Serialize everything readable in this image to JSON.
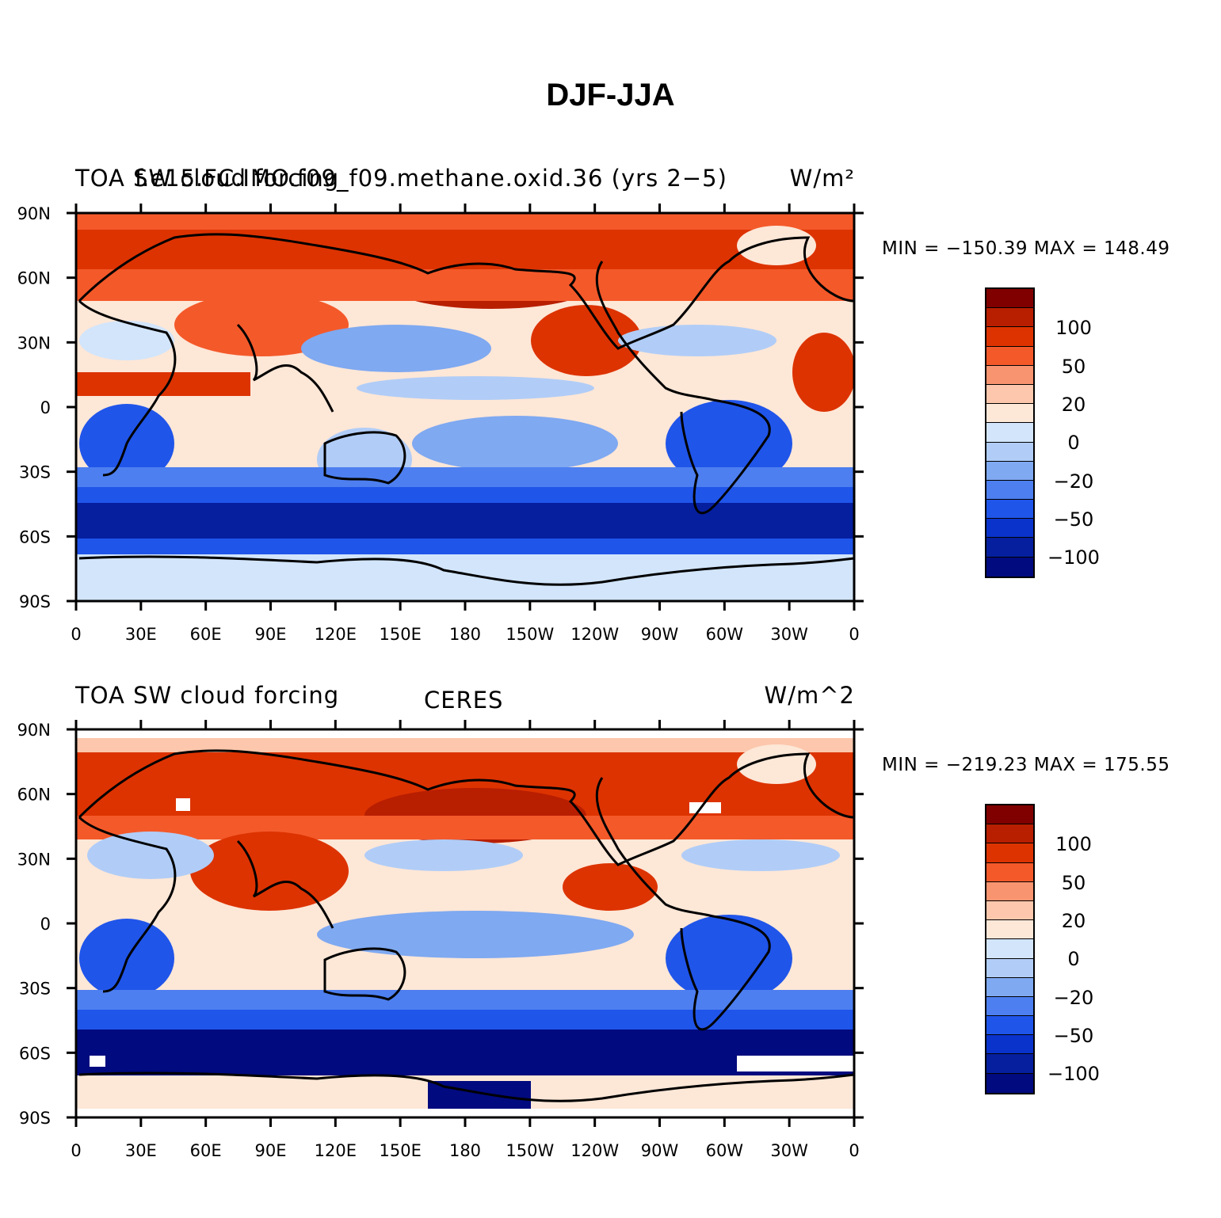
{
  "page_title": "DJF-JJA",
  "panels": [
    {
      "left_label": "TOA SW cloud forcing",
      "center_label": "f.e15.FC.IMO.f09_f09.methane.oxid.36 (yrs 2−5)",
      "right_label": "W/m²",
      "min_max": "MIN = −150.39 MAX = 148.49"
    },
    {
      "left_label": "TOA SW cloud forcing",
      "center_label": "CERES",
      "right_label": "W/m^2",
      "min_max": "MIN = −219.23 MAX = 175.55"
    }
  ],
  "axes": {
    "lat_labels": [
      "90N",
      "60N",
      "30N",
      "0",
      "30S",
      "60S",
      "90S"
    ],
    "lon_labels": [
      "0",
      "30E",
      "60E",
      "90E",
      "120E",
      "150E",
      "180",
      "150W",
      "120W",
      "90W",
      "60W",
      "30W",
      "0"
    ]
  },
  "colorbar": {
    "tick_labels": [
      "100",
      "50",
      "20",
      "0",
      "−20",
      "−50",
      "−100"
    ],
    "colors": [
      "#800000",
      "#b81e00",
      "#dd3300",
      "#f4592a",
      "#f99470",
      "#fcc7ac",
      "#fde7d7",
      "#d2e5fb",
      "#b1cdf7",
      "#7fa9f1",
      "#4d7ff0",
      "#2055ea",
      "#0a33cc",
      "#061f9e",
      "#010a7e"
    ]
  }
}
